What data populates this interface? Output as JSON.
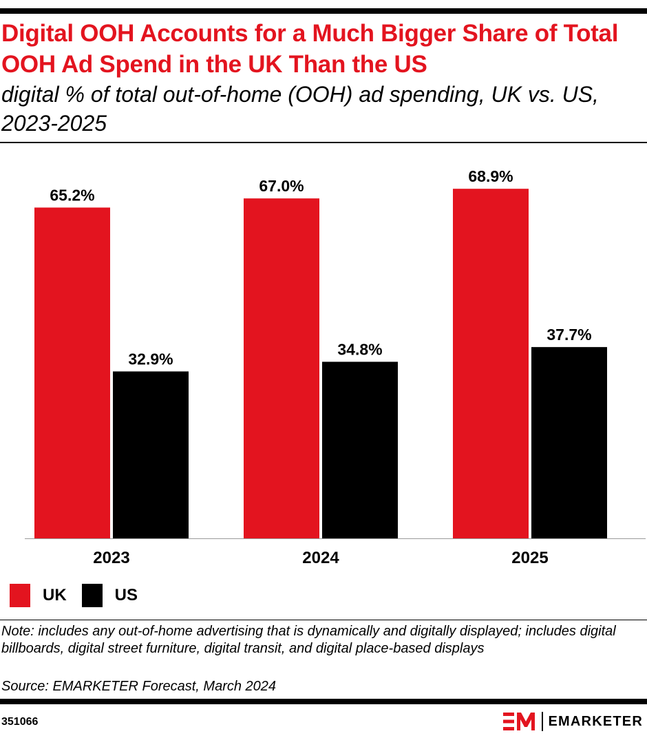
{
  "header": {
    "title": "Digital OOH Accounts for a Much Bigger Share of Total OOH Ad Spend in the UK Than the US",
    "subtitle": "digital % of total out-of-home (OOH) ad spending, UK vs. US, 2023-2025"
  },
  "chart_data": {
    "type": "bar",
    "title": "Digital OOH Accounts for a Much Bigger Share of Total OOH Ad Spend in the UK Than the US",
    "subtitle": "digital % of total out-of-home (OOH) ad spending, UK vs. US, 2023-2025",
    "categories": [
      "2023",
      "2024",
      "2025"
    ],
    "series": [
      {
        "name": "UK",
        "values": [
          65.2,
          67.0,
          68.9
        ],
        "labels": [
          "65.2%",
          "67.0%",
          "68.9%"
        ],
        "color": "#e3141f"
      },
      {
        "name": "US",
        "values": [
          32.9,
          34.8,
          37.7
        ],
        "labels": [
          "32.9%",
          "34.8%",
          "37.7%"
        ],
        "color": "#000000"
      }
    ],
    "xlabel": "",
    "ylabel": "",
    "ylim": [
      0,
      75
    ],
    "grid": false,
    "legend_position": "bottom-left"
  },
  "legend": {
    "items": [
      {
        "label": "UK",
        "color": "#e3141f"
      },
      {
        "label": "US",
        "color": "#000000"
      }
    ]
  },
  "footer": {
    "note": "Note: includes any out-of-home advertising that is dynamically and digitally displayed; includes digital billboards, digital street furniture, digital transit, and digital place-based displays",
    "source": "Source: EMARKETER Forecast, March 2024",
    "chart_id": "351066",
    "brand": "EMARKETER",
    "brand_color": "#e3141f"
  }
}
